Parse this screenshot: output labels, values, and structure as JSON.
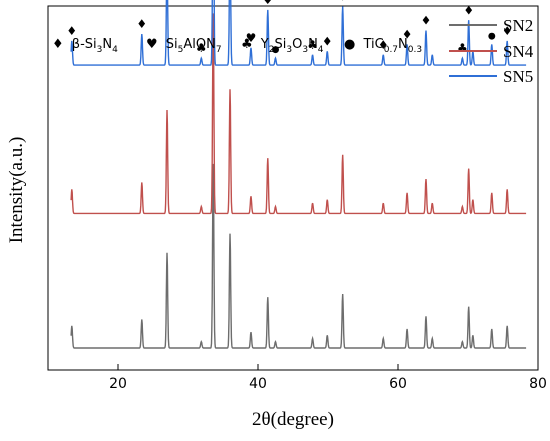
{
  "chart_data": {
    "type": "line",
    "xlabel": "2θ(degree)",
    "ylabel": "Intensity(a.u.)",
    "xlim": [
      10,
      80
    ],
    "xticks": [
      "20",
      "40",
      "60",
      "80"
    ],
    "xtick_values": [
      20,
      40,
      60,
      80
    ],
    "yticks_shown": false,
    "legend_placement": "top-right",
    "series": [
      {
        "name": "SN2",
        "color": "#6d6d6d",
        "baseline": 0.0
      },
      {
        "name": "SN4",
        "color": "#c0504d",
        "baseline": 0.39
      },
      {
        "name": "SN5",
        "color": "#2f6fd6",
        "baseline": 0.82
      }
    ],
    "peaks": {
      "positions": [
        13.4,
        23.4,
        27.0,
        31.9,
        33.6,
        36.0,
        39.0,
        41.4,
        42.5,
        47.8,
        49.9,
        52.1,
        57.9,
        61.3,
        64.0,
        64.9,
        69.2,
        70.1,
        70.7,
        73.4,
        75.6
      ],
      "heights": [
        0.07,
        0.09,
        0.3,
        0.02,
        0.58,
        0.36,
        0.05,
        0.16,
        0.02,
        0.03,
        0.04,
        0.17,
        0.03,
        0.06,
        0.1,
        0.03,
        0.02,
        0.13,
        0.04,
        0.06,
        0.07
      ]
    },
    "phase_legend": [
      {
        "symbol": "♦",
        "label": "β-Si",
        "sub1": "3",
        "mid": "N",
        "sub2": "4",
        "mid2": "",
        "sub3": ""
      },
      {
        "symbol": "♥",
        "label": "Si",
        "sub1": "5",
        "mid": "AlON",
        "sub2": "7",
        "mid2": "",
        "sub3": ""
      },
      {
        "symbol": "♣",
        "label": "Y",
        "sub1": "2",
        "mid": "Si",
        "sub2": "3",
        "mid2": "O",
        "sub3": "3"
      },
      {
        "symbol": "●",
        "label": "TiC",
        "sub1": "0.7",
        "mid": "N",
        "sub2": "0.3",
        "mid2": "",
        "sub3": ""
      }
    ],
    "phase_legend_extra": {
      "Y2Si3O3N4_tail": "N",
      "Y2Si3O3N4_tail_sub": "4"
    },
    "markers_on_SN5": [
      {
        "x": 13.4,
        "symbol": "♦"
      },
      {
        "x": 23.4,
        "symbol": "♦"
      },
      {
        "x": 27.0,
        "symbol": "♦"
      },
      {
        "x": 31.9,
        "symbol": "♣"
      },
      {
        "x": 33.6,
        "symbol": "♦"
      },
      {
        "x": 36.0,
        "symbol": "●"
      },
      {
        "x": 39.0,
        "symbol": "♥"
      },
      {
        "x": 41.4,
        "symbol": "♥"
      },
      {
        "x": 42.5,
        "symbol": "●"
      },
      {
        "x": 47.8,
        "symbol": "♣"
      },
      {
        "x": 49.9,
        "symbol": "♦"
      },
      {
        "x": 52.1,
        "symbol": "♥"
      },
      {
        "x": 57.9,
        "symbol": "♦"
      },
      {
        "x": 61.3,
        "symbol": "♦"
      },
      {
        "x": 64.0,
        "symbol": "♦"
      },
      {
        "x": 69.2,
        "symbol": "♣"
      },
      {
        "x": 70.1,
        "symbol": "♦"
      },
      {
        "x": 73.4,
        "symbol": "●"
      },
      {
        "x": 75.6,
        "symbol": "♦"
      }
    ]
  }
}
